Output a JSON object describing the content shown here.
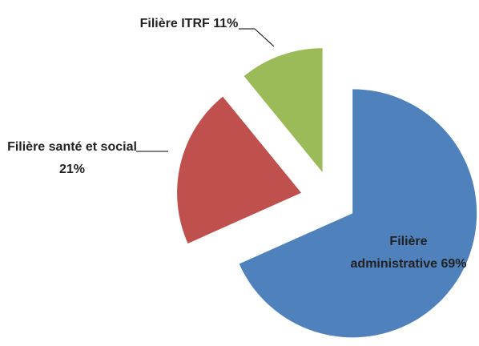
{
  "chart_data": {
    "type": "pie",
    "categories": [
      "Filière administrative",
      "Filière santé et social",
      "Filière ITRF"
    ],
    "values": [
      69,
      21,
      11
    ],
    "value_labels": [
      "69%",
      "21%",
      "11%"
    ],
    "colors": [
      "#4f81bd",
      "#c0504d",
      "#9bbb59"
    ]
  }
}
